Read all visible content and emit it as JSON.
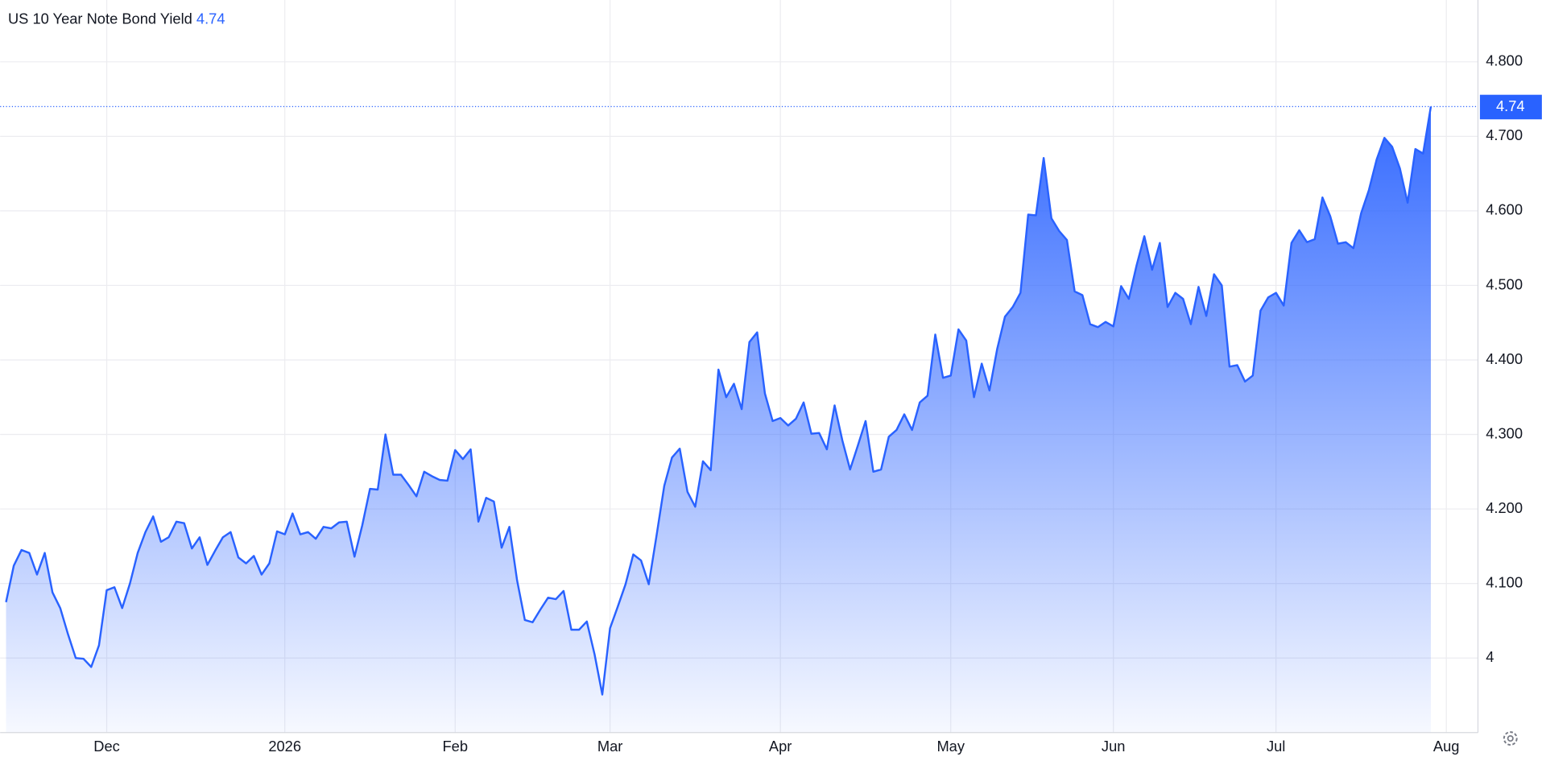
{
  "chart_data": {
    "type": "area",
    "title": "US 10 Year Note Bond Yield",
    "series": [
      {
        "name": "US 10 Year Note Bond Yield",
        "color": "#2962ff",
        "values": [
          4.075,
          4.124,
          4.145,
          4.141,
          4.112,
          4.141,
          4.088,
          4.067,
          4.032,
          4.0,
          3.999,
          3.988,
          4.017,
          4.091,
          4.095,
          4.067,
          4.1,
          4.141,
          4.169,
          4.19,
          4.156,
          4.162,
          4.183,
          4.181,
          4.147,
          4.162,
          4.125,
          4.144,
          4.162,
          4.169,
          4.135,
          4.127,
          4.137,
          4.112,
          4.127,
          4.17,
          4.166,
          4.194,
          4.166,
          4.169,
          4.16,
          4.176,
          4.174,
          4.182,
          4.183,
          4.136,
          4.178,
          4.227,
          4.226,
          4.3,
          4.246,
          4.246,
          4.232,
          4.217,
          4.25,
          4.244,
          4.239,
          4.238,
          4.279,
          4.267,
          4.28,
          4.183,
          4.215,
          4.21,
          4.148,
          4.176,
          4.104,
          4.051,
          4.048,
          4.065,
          4.081,
          4.079,
          4.09,
          4.038,
          4.038,
          4.049,
          4.005,
          3.951,
          4.04,
          4.069,
          4.099,
          4.139,
          4.131,
          4.099,
          4.164,
          4.231,
          4.269,
          4.281,
          4.223,
          4.203,
          4.264,
          4.252,
          4.387,
          4.35,
          4.368,
          4.334,
          4.424,
          4.437,
          4.355,
          4.318,
          4.322,
          4.312,
          4.321,
          4.343,
          4.301,
          4.302,
          4.28,
          4.339,
          4.292,
          4.253,
          4.285,
          4.318,
          4.25,
          4.253,
          4.297,
          4.306,
          4.327,
          4.306,
          4.343,
          4.352,
          4.434,
          4.376,
          4.379,
          4.441,
          4.426,
          4.35,
          4.395,
          4.359,
          4.415,
          4.458,
          4.471,
          4.49,
          4.595,
          4.594,
          4.671,
          4.59,
          4.573,
          4.561,
          4.492,
          4.487,
          4.448,
          4.444,
          4.451,
          4.445,
          4.499,
          4.482,
          4.527,
          4.566,
          4.521,
          4.557,
          4.471,
          4.49,
          4.482,
          4.448,
          4.498,
          4.459,
          4.515,
          4.5,
          4.391,
          4.393,
          4.371,
          4.379,
          4.466,
          4.484,
          4.49,
          4.473,
          4.557,
          4.574,
          4.558,
          4.562,
          4.618,
          4.593,
          4.556,
          4.558,
          4.55,
          4.597,
          4.628,
          4.669,
          4.698,
          4.686,
          4.657,
          4.611,
          4.683,
          4.677,
          4.74
        ]
      }
    ],
    "xlim": [
      0,
      189.7
    ],
    "xticks": [
      {
        "value": 13,
        "label": "Dec"
      },
      {
        "value": 36,
        "label": "2026"
      },
      {
        "value": 58,
        "label": "Feb"
      },
      {
        "value": 78,
        "label": "Mar"
      },
      {
        "value": 100,
        "label": "Apr"
      },
      {
        "value": 122,
        "label": "May"
      },
      {
        "value": 143,
        "label": "Jun"
      },
      {
        "value": 164,
        "label": "Jul"
      },
      {
        "value": 186,
        "label": "Aug"
      }
    ],
    "ylim": [
      3.9,
      4.883
    ],
    "yticks": [
      4,
      {
        "value": 4.1,
        "label": "4.100"
      },
      {
        "value": 4.2,
        "label": "4.200"
      },
      {
        "value": 4.3,
        "label": "4.300"
      },
      {
        "value": 4.4,
        "label": "4.400"
      },
      {
        "value": 4.5,
        "label": "4.500"
      },
      {
        "value": 4.6,
        "label": "4.600"
      },
      {
        "value": 4.7,
        "label": "4.700"
      },
      {
        "value": 4.8,
        "label": "4.800"
      }
    ],
    "grid": true
  }
}
